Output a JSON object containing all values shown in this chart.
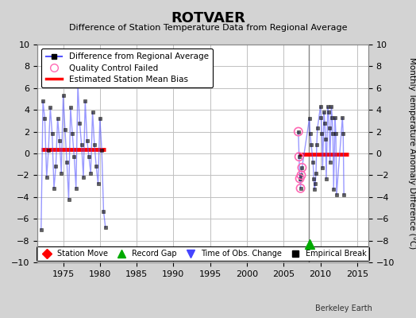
{
  "title": "ROTVAER",
  "subtitle": "Difference of Station Temperature Data from Regional Average",
  "ylabel": "Monthly Temperature Anomaly Difference (°C)",
  "xlim": [
    1971.5,
    2016.5
  ],
  "ylim": [
    -10,
    10
  ],
  "xticks": [
    1975,
    1980,
    1985,
    1990,
    1995,
    2000,
    2005,
    2010,
    2015
  ],
  "yticks": [
    -10,
    -8,
    -6,
    -4,
    -2,
    0,
    2,
    4,
    6,
    8,
    10
  ],
  "background_color": "#d3d3d3",
  "plot_bg_color": "#ffffff",
  "grid_color": "#c0c0c0",
  "line_color": "#5555ff",
  "line_alpha": 0.6,
  "marker_color": "#000000",
  "bias_color": "#ff0000",
  "vertical_line_x": 2008.42,
  "vertical_line_color": "#888888",
  "segment1": {
    "x_start": 1972.0,
    "x_end": 1980.8,
    "bias": 0.4
  },
  "segment2": {
    "x_start": 2007.0,
    "x_end": 2013.8,
    "bias": -0.1
  },
  "data_points_1": [
    [
      1972.0,
      -7.0
    ],
    [
      1972.25,
      4.8
    ],
    [
      1972.5,
      3.2
    ],
    [
      1972.75,
      -2.2
    ],
    [
      1973.0,
      0.3
    ],
    [
      1973.25,
      4.2
    ],
    [
      1973.5,
      1.8
    ],
    [
      1973.75,
      -3.2
    ],
    [
      1974.0,
      -1.2
    ],
    [
      1974.25,
      3.2
    ],
    [
      1974.5,
      1.2
    ],
    [
      1974.75,
      -1.8
    ],
    [
      1975.0,
      5.3
    ],
    [
      1975.25,
      2.2
    ],
    [
      1975.5,
      -0.8
    ],
    [
      1975.75,
      -4.2
    ],
    [
      1976.0,
      4.2
    ],
    [
      1976.25,
      1.8
    ],
    [
      1976.5,
      -0.3
    ],
    [
      1976.75,
      -3.2
    ],
    [
      1977.0,
      6.3
    ],
    [
      1977.25,
      2.8
    ],
    [
      1977.5,
      0.8
    ],
    [
      1977.75,
      -2.2
    ],
    [
      1978.0,
      4.8
    ],
    [
      1978.25,
      1.2
    ],
    [
      1978.5,
      -0.3
    ],
    [
      1978.75,
      -1.8
    ],
    [
      1979.0,
      3.8
    ],
    [
      1979.25,
      0.8
    ],
    [
      1979.5,
      -1.2
    ],
    [
      1979.75,
      -2.8
    ],
    [
      1980.0,
      3.2
    ],
    [
      1980.25,
      0.3
    ],
    [
      1980.5,
      -5.3
    ],
    [
      1980.75,
      -6.8
    ]
  ],
  "data_points_2": [
    [
      2007.0,
      2.0
    ],
    [
      2007.1,
      -0.3
    ],
    [
      2007.2,
      -2.3
    ],
    [
      2007.3,
      -3.2
    ],
    [
      2007.4,
      -2.0
    ],
    [
      2007.5,
      -1.3
    ],
    [
      2008.5,
      3.2
    ],
    [
      2008.6,
      1.8
    ],
    [
      2008.75,
      0.8
    ],
    [
      2009.0,
      -0.8
    ],
    [
      2009.1,
      -2.3
    ],
    [
      2009.2,
      -3.3
    ],
    [
      2009.3,
      -2.8
    ],
    [
      2009.4,
      -1.8
    ],
    [
      2009.5,
      0.8
    ],
    [
      2009.6,
      2.3
    ],
    [
      2010.0,
      4.3
    ],
    [
      2010.1,
      3.3
    ],
    [
      2010.2,
      1.8
    ],
    [
      2010.3,
      -1.3
    ],
    [
      2010.5,
      3.8
    ],
    [
      2010.6,
      2.8
    ],
    [
      2010.7,
      1.3
    ],
    [
      2010.8,
      -2.3
    ],
    [
      2011.0,
      4.3
    ],
    [
      2011.1,
      3.8
    ],
    [
      2011.2,
      2.3
    ],
    [
      2011.3,
      -0.8
    ],
    [
      2011.5,
      4.3
    ],
    [
      2011.6,
      3.3
    ],
    [
      2011.7,
      1.8
    ],
    [
      2011.8,
      -3.3
    ],
    [
      2012.0,
      3.3
    ],
    [
      2012.1,
      1.8
    ],
    [
      2012.2,
      -3.8
    ],
    [
      2013.0,
      3.3
    ],
    [
      2013.1,
      1.8
    ],
    [
      2013.2,
      -3.8
    ]
  ],
  "qc_failed_points": [
    [
      2007.0,
      2.0
    ],
    [
      2007.1,
      -0.3
    ],
    [
      2007.2,
      -2.3
    ],
    [
      2007.3,
      -3.2
    ],
    [
      2007.4,
      -2.0
    ],
    [
      2007.5,
      -1.3
    ]
  ],
  "record_gap_x": 2008.5,
  "record_gap_y": -8.3,
  "watermark": "Berkeley Earth"
}
